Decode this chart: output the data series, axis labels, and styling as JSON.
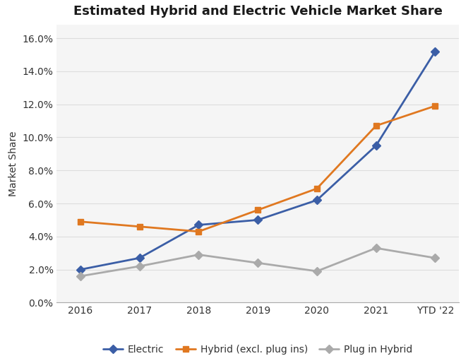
{
  "title": "Estimated Hybrid and Electric Vehicle Market Share",
  "xlabel": "",
  "ylabel": "Market Share",
  "x_labels": [
    "2016",
    "2017",
    "2018",
    "2019",
    "2020",
    "2021",
    "YTD '22"
  ],
  "series": {
    "Electric": {
      "values": [
        0.02,
        0.027,
        0.047,
        0.05,
        0.062,
        0.095,
        0.152
      ],
      "color": "#3B5EA6",
      "marker": "D",
      "markersize": 6,
      "linewidth": 2.0,
      "label": "Electric"
    },
    "Hybrid": {
      "values": [
        0.049,
        0.046,
        0.043,
        0.056,
        0.069,
        0.107,
        0.119
      ],
      "color": "#E07820",
      "marker": "s",
      "markersize": 6,
      "linewidth": 2.0,
      "label": "Hybrid (excl. plug ins)"
    },
    "PluginHybrid": {
      "values": [
        0.016,
        0.022,
        0.029,
        0.024,
        0.019,
        0.033,
        0.027
      ],
      "color": "#AAAAAA",
      "marker": "D",
      "markersize": 6,
      "linewidth": 2.0,
      "label": "Plug in Hybrid"
    }
  },
  "ylim": [
    0.0,
    0.168
  ],
  "yticks": [
    0.0,
    0.02,
    0.04,
    0.06,
    0.08,
    0.1,
    0.12,
    0.14,
    0.16
  ],
  "background_color": "#FFFFFF",
  "plot_bg_color": "#F5F5F5",
  "grid_color": "#DDDDDD",
  "title_fontsize": 13,
  "axis_label_fontsize": 10,
  "tick_fontsize": 10,
  "legend_fontsize": 10
}
